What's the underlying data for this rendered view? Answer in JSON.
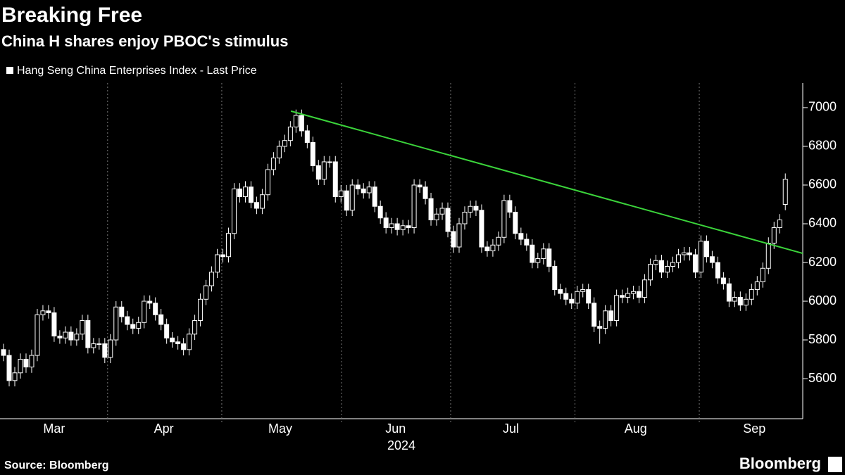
{
  "chart_data": {
    "type": "candlestick",
    "title": "Breaking Free",
    "subtitle": "China H shares enjoy PBOC's stimulus",
    "source": "Source: Bloomberg",
    "branding": "Bloomberg",
    "xlabel": "2024",
    "xlim": [
      -0.63,
      142.1
    ],
    "xgrid": [
      18.5,
      38.8,
      60.1,
      79.5,
      101.6,
      123.7
    ],
    "xticks": [
      {
        "value": 9.0,
        "label": "Mar"
      },
      {
        "value": 28.5,
        "label": "Apr"
      },
      {
        "value": 49.2,
        "label": "May"
      },
      {
        "value": 69.7,
        "label": "Jun"
      },
      {
        "value": 90.2,
        "label": "Jul"
      },
      {
        "value": 112.4,
        "label": "Aug"
      },
      {
        "value": 133.5,
        "label": "Sep"
      }
    ],
    "ylim": [
      5393,
      7127
    ],
    "yticks": [
      5600,
      5800,
      6000,
      6200,
      6400,
      6600,
      6800,
      7000
    ],
    "trendline": {
      "x": [
        51.1,
        142.1
      ],
      "y": [
        6982,
        6247
      ],
      "color": "#3bd43b"
    },
    "series": [
      {
        "name": "Hang Seng China Enterprises Index - Last Price",
        "color": "#ffffff",
        "open": [
          5750,
          5720,
          5590,
          5630,
          5700,
          5660,
          5720,
          5930,
          5950,
          5940,
          5820,
          5810,
          5840,
          5800,
          5830,
          5900,
          5760,
          5780,
          5780,
          5710,
          5800,
          5970,
          5920,
          5880,
          5860,
          5890,
          6000,
          5990,
          5930,
          5880,
          5810,
          5790,
          5780,
          5750,
          5830,
          5900,
          6010,
          6080,
          6150,
          6240,
          6230,
          6350,
          6580,
          6540,
          6590,
          6510,
          6480,
          6550,
          6680,
          6740,
          6800,
          6830,
          6900,
          6960,
          6880,
          6820,
          6700,
          6630,
          6720,
          6720,
          6540,
          6570,
          6470,
          6600,
          6580,
          6560,
          6590,
          6490,
          6430,
          6380,
          6400,
          6370,
          6390,
          6380,
          6600,
          6590,
          6530,
          6420,
          6450,
          6480,
          6360,
          6280,
          6400,
          6460,
          6490,
          6470,
          6280,
          6260,
          6290,
          6330,
          6520,
          6460,
          6350,
          6320,
          6290,
          6200,
          6220,
          6270,
          6180,
          6060,
          6040,
          6010,
          5990,
          6050,
          6060,
          5990,
          5870,
          5860,
          5950,
          5900,
          6030,
          6020,
          6040,
          6050,
          6020,
          6110,
          6190,
          6210,
          6150,
          6180,
          6200,
          6240,
          6250,
          6240,
          6150,
          6310,
          6230,
          6200,
          6120,
          6090,
          6000,
          6020,
          5980,
          6010,
          6060,
          6100,
          6170,
          6300,
          6380,
          6500
        ],
        "high": [
          5780,
          5750,
          5660,
          5730,
          5730,
          5750,
          5960,
          5980,
          5980,
          5970,
          5850,
          5870,
          5870,
          5860,
          5930,
          5930,
          5810,
          5810,
          5810,
          5830,
          6000,
          6000,
          5950,
          5910,
          5920,
          6030,
          6030,
          6020,
          5960,
          5910,
          5840,
          5820,
          5810,
          5860,
          5930,
          6040,
          6110,
          6180,
          6270,
          6270,
          6380,
          6610,
          6610,
          6620,
          6620,
          6540,
          6580,
          6710,
          6770,
          6830,
          6860,
          6930,
          6990,
          6990,
          6910,
          6850,
          6730,
          6750,
          6750,
          6750,
          6600,
          6600,
          6630,
          6630,
          6610,
          6620,
          6620,
          6520,
          6460,
          6430,
          6430,
          6420,
          6420,
          6630,
          6630,
          6620,
          6560,
          6480,
          6510,
          6510,
          6390,
          6430,
          6490,
          6520,
          6520,
          6500,
          6310,
          6320,
          6360,
          6550,
          6550,
          6490,
          6380,
          6350,
          6320,
          6250,
          6300,
          6300,
          6210,
          6090,
          6070,
          6040,
          6080,
          6090,
          6090,
          6020,
          5900,
          5980,
          5980,
          6060,
          6060,
          6070,
          6080,
          6080,
          6140,
          6220,
          6240,
          6240,
          6210,
          6230,
          6270,
          6280,
          6280,
          6270,
          6340,
          6340,
          6260,
          6230,
          6150,
          6120,
          6050,
          6050,
          6040,
          6090,
          6130,
          6200,
          6330,
          6410,
          6450,
          6660
        ],
        "low": [
          5690,
          5560,
          5560,
          5600,
          5630,
          5630,
          5690,
          5900,
          5910,
          5790,
          5780,
          5780,
          5770,
          5770,
          5800,
          5730,
          5730,
          5750,
          5680,
          5680,
          5770,
          5890,
          5850,
          5830,
          5830,
          5860,
          5960,
          5900,
          5850,
          5780,
          5760,
          5750,
          5720,
          5720,
          5800,
          5870,
          5980,
          6050,
          6120,
          6200,
          6200,
          6320,
          6510,
          6510,
          6480,
          6450,
          6450,
          6520,
          6650,
          6710,
          6770,
          6800,
          6870,
          6850,
          6790,
          6670,
          6600,
          6600,
          6690,
          6510,
          6510,
          6440,
          6440,
          6550,
          6530,
          6530,
          6460,
          6400,
          6350,
          6350,
          6340,
          6340,
          6350,
          6350,
          6560,
          6500,
          6390,
          6390,
          6420,
          6330,
          6250,
          6250,
          6370,
          6430,
          6440,
          6250,
          6230,
          6230,
          6260,
          6300,
          6430,
          6320,
          6290,
          6260,
          6170,
          6170,
          6190,
          6150,
          6030,
          6010,
          5980,
          5960,
          5960,
          6020,
          5960,
          5840,
          5780,
          5830,
          5870,
          5870,
          5990,
          5990,
          6010,
          5990,
          5990,
          6080,
          6160,
          6120,
          6120,
          6150,
          6170,
          6210,
          6210,
          6120,
          6120,
          6200,
          6170,
          6090,
          6060,
          5970,
          5970,
          5950,
          5950,
          5980,
          6030,
          6070,
          6140,
          6270,
          6350,
          6470
        ],
        "close": [
          5720,
          5590,
          5630,
          5700,
          5660,
          5720,
          5930,
          5950,
          5940,
          5820,
          5810,
          5840,
          5800,
          5830,
          5900,
          5760,
          5780,
          5780,
          5710,
          5800,
          5970,
          5920,
          5880,
          5860,
          5890,
          6000,
          5990,
          5930,
          5880,
          5810,
          5790,
          5780,
          5750,
          5830,
          5900,
          6010,
          6080,
          6150,
          6240,
          6230,
          6350,
          6580,
          6540,
          6590,
          6510,
          6480,
          6550,
          6680,
          6740,
          6800,
          6830,
          6900,
          6960,
          6880,
          6820,
          6700,
          6630,
          6720,
          6720,
          6540,
          6570,
          6470,
          6600,
          6580,
          6560,
          6590,
          6490,
          6430,
          6380,
          6400,
          6370,
          6390,
          6380,
          6600,
          6590,
          6530,
          6420,
          6450,
          6480,
          6360,
          6280,
          6400,
          6460,
          6490,
          6470,
          6280,
          6260,
          6290,
          6330,
          6520,
          6460,
          6350,
          6320,
          6290,
          6200,
          6220,
          6270,
          6180,
          6060,
          6040,
          6010,
          5990,
          6050,
          6060,
          5990,
          5870,
          5860,
          5950,
          5900,
          6030,
          6020,
          6040,
          6050,
          6020,
          6110,
          6190,
          6210,
          6150,
          6180,
          6200,
          6240,
          6250,
          6240,
          6150,
          6310,
          6230,
          6200,
          6120,
          6090,
          6000,
          6020,
          5980,
          6010,
          6060,
          6100,
          6170,
          6300,
          6380,
          6420,
          6630
        ]
      }
    ]
  }
}
